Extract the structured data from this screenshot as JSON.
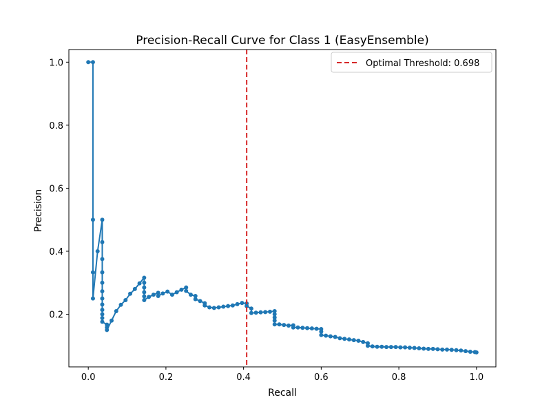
{
  "chart_data": {
    "type": "line",
    "title": "Precision-Recall Curve for Class 1 (EasyEnsemble)",
    "xlabel": "Recall",
    "ylabel": "Precision",
    "xlim": [
      -0.05,
      1.05
    ],
    "ylim": [
      0.033,
      1.04
    ],
    "xticks": [
      0.0,
      0.2,
      0.4,
      0.6,
      0.8,
      1.0
    ],
    "yticks": [
      0.2,
      0.4,
      0.6,
      0.8,
      1.0
    ],
    "xtick_labels": [
      "0.0",
      "0.2",
      "0.4",
      "0.6",
      "0.8",
      "1.0"
    ],
    "ytick_labels": [
      "0.2",
      "0.4",
      "0.6",
      "0.8",
      "1.0"
    ],
    "grid": false,
    "legend_position": "top-right",
    "series_color": "#1f77b4",
    "threshold_color": "#d62728",
    "series": [
      {
        "x": [
          0.0,
          0.012,
          0.012,
          0.012,
          0.012,
          0.024,
          0.036,
          0.036,
          0.036,
          0.036,
          0.036,
          0.036,
          0.036,
          0.036,
          0.036,
          0.036,
          0.036,
          0.036,
          0.048,
          0.048,
          0.048,
          0.06,
          0.072,
          0.084,
          0.096,
          0.108,
          0.12,
          0.132,
          0.144,
          0.144,
          0.144,
          0.144,
          0.144,
          0.144,
          0.156,
          0.168,
          0.18,
          0.18,
          0.192,
          0.204,
          0.216,
          0.228,
          0.24,
          0.252,
          0.252,
          0.264,
          0.276,
          0.276,
          0.288,
          0.3,
          0.3,
          0.312,
          0.324,
          0.336,
          0.348,
          0.36,
          0.372,
          0.384,
          0.396,
          0.408,
          0.408,
          0.42,
          0.42,
          0.432,
          0.444,
          0.456,
          0.468,
          0.48,
          0.48,
          0.48,
          0.48,
          0.48,
          0.492,
          0.504,
          0.516,
          0.528,
          0.528,
          0.54,
          0.552,
          0.564,
          0.576,
          0.588,
          0.6,
          0.6,
          0.6,
          0.612,
          0.624,
          0.636,
          0.648,
          0.66,
          0.672,
          0.684,
          0.696,
          0.708,
          0.72,
          0.72,
          0.732,
          0.744,
          0.756,
          0.768,
          0.78,
          0.792,
          0.804,
          0.816,
          0.828,
          0.84,
          0.852,
          0.864,
          0.876,
          0.888,
          0.9,
          0.912,
          0.924,
          0.936,
          0.948,
          0.96,
          0.972,
          0.984,
          0.996,
          1.0
        ],
        "y": [
          1.0,
          1.0,
          0.5,
          0.333,
          0.25,
          0.4,
          0.5,
          0.429,
          0.375,
          0.333,
          0.3,
          0.273,
          0.25,
          0.231,
          0.214,
          0.2,
          0.188,
          0.176,
          0.167,
          0.158,
          0.15,
          0.18,
          0.21,
          0.23,
          0.245,
          0.265,
          0.28,
          0.298,
          0.316,
          0.3,
          0.285,
          0.27,
          0.257,
          0.245,
          0.255,
          0.262,
          0.268,
          0.258,
          0.266,
          0.272,
          0.262,
          0.27,
          0.278,
          0.285,
          0.274,
          0.262,
          0.258,
          0.248,
          0.242,
          0.235,
          0.228,
          0.222,
          0.22,
          0.222,
          0.224,
          0.226,
          0.228,
          0.232,
          0.236,
          0.234,
          0.226,
          0.218,
          0.204,
          0.205,
          0.206,
          0.207,
          0.208,
          0.21,
          0.2,
          0.19,
          0.18,
          0.168,
          0.168,
          0.166,
          0.164,
          0.165,
          0.158,
          0.158,
          0.157,
          0.156,
          0.155,
          0.154,
          0.153,
          0.145,
          0.134,
          0.132,
          0.13,
          0.128,
          0.124,
          0.122,
          0.12,
          0.118,
          0.116,
          0.112,
          0.108,
          0.1,
          0.098,
          0.097,
          0.097,
          0.096,
          0.096,
          0.096,
          0.095,
          0.095,
          0.094,
          0.093,
          0.092,
          0.091,
          0.09,
          0.09,
          0.089,
          0.088,
          0.088,
          0.087,
          0.086,
          0.085,
          0.083,
          0.081,
          0.08,
          0.079
        ]
      }
    ],
    "threshold_line": {
      "x": 0.408,
      "legend_label": "Optimal Threshold: 0.698"
    }
  }
}
